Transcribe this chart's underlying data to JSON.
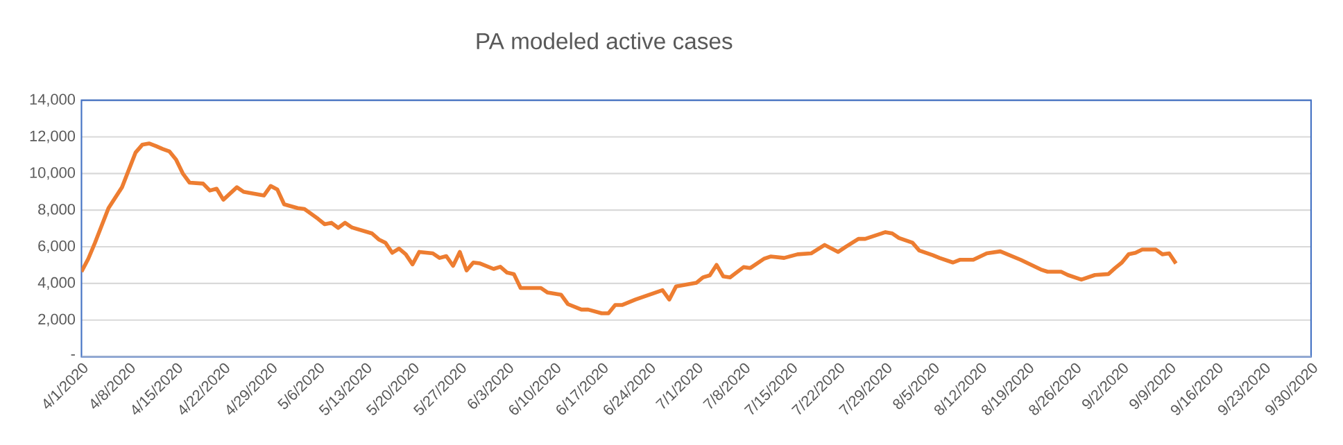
{
  "chart_data": {
    "type": "line",
    "title": "PA modeled active cases",
    "x": [
      "2020-04-01",
      "2020-04-02",
      "2020-04-03",
      "2020-04-05",
      "2020-04-07",
      "2020-04-09",
      "2020-04-10",
      "2020-04-11",
      "2020-04-12",
      "2020-04-13",
      "2020-04-14",
      "2020-04-15",
      "2020-04-16",
      "2020-04-17",
      "2020-04-19",
      "2020-04-20",
      "2020-04-21",
      "2020-04-22",
      "2020-04-24",
      "2020-04-25",
      "2020-04-28",
      "2020-04-29",
      "2020-04-30",
      "2020-05-01",
      "2020-05-03",
      "2020-05-04",
      "2020-05-06",
      "2020-05-07",
      "2020-05-08",
      "2020-05-09",
      "2020-05-10",
      "2020-05-11",
      "2020-05-14",
      "2020-05-15",
      "2020-05-16",
      "2020-05-17",
      "2020-05-18",
      "2020-05-19",
      "2020-05-20",
      "2020-05-21",
      "2020-05-23",
      "2020-05-24",
      "2020-05-25",
      "2020-05-26",
      "2020-05-27",
      "2020-05-28",
      "2020-05-29",
      "2020-05-30",
      "2020-06-01",
      "2020-06-02",
      "2020-06-03",
      "2020-06-04",
      "2020-06-05",
      "2020-06-08",
      "2020-06-09",
      "2020-06-11",
      "2020-06-12",
      "2020-06-14",
      "2020-06-15",
      "2020-06-17",
      "2020-06-18",
      "2020-06-19",
      "2020-06-20",
      "2020-06-22",
      "2020-06-24",
      "2020-06-26",
      "2020-06-27",
      "2020-06-28",
      "2020-07-01",
      "2020-07-02",
      "2020-07-03",
      "2020-07-04",
      "2020-07-05",
      "2020-07-06",
      "2020-07-08",
      "2020-07-09",
      "2020-07-11",
      "2020-07-12",
      "2020-07-14",
      "2020-07-16",
      "2020-07-18",
      "2020-07-20",
      "2020-07-22",
      "2020-07-23",
      "2020-07-25",
      "2020-07-26",
      "2020-07-29",
      "2020-07-30",
      "2020-07-31",
      "2020-08-02",
      "2020-08-03",
      "2020-08-05",
      "2020-08-06",
      "2020-08-08",
      "2020-08-09",
      "2020-08-11",
      "2020-08-13",
      "2020-08-15",
      "2020-08-18",
      "2020-08-21",
      "2020-08-22",
      "2020-08-24",
      "2020-08-25",
      "2020-08-27",
      "2020-08-29",
      "2020-08-31",
      "2020-09-01",
      "2020-09-02",
      "2020-09-03",
      "2020-09-04",
      "2020-09-05",
      "2020-09-07",
      "2020-09-08",
      "2020-09-09",
      "2020-09-10"
    ],
    "series": [
      {
        "color": "#ed7d31",
        "values": [
          4640,
          5340,
          6220,
          8110,
          9250,
          11140,
          11570,
          11640,
          11500,
          11340,
          11210,
          10760,
          10000,
          9500,
          9450,
          9070,
          9170,
          8570,
          9250,
          9000,
          8800,
          9320,
          9120,
          8320,
          8110,
          8060,
          7530,
          7230,
          7310,
          7030,
          7310,
          7060,
          6730,
          6400,
          6220,
          5670,
          5900,
          5590,
          5040,
          5720,
          5640,
          5390,
          5490,
          4960,
          5720,
          4710,
          5140,
          5090,
          4790,
          4910,
          4590,
          4510,
          3750,
          3750,
          3500,
          3380,
          2870,
          2570,
          2570,
          2370,
          2370,
          2820,
          2820,
          3120,
          3380,
          3630,
          3120,
          3830,
          4030,
          4330,
          4440,
          5010,
          4380,
          4330,
          4890,
          4840,
          5340,
          5470,
          5390,
          5590,
          5640,
          6100,
          5720,
          5970,
          6430,
          6430,
          6800,
          6730,
          6480,
          6220,
          5800,
          5540,
          5390,
          5140,
          5290,
          5290,
          5640,
          5750,
          5290,
          4760,
          4640,
          4640,
          4460,
          4210,
          4460,
          4510,
          4840,
          5140,
          5590,
          5670,
          5850,
          5850,
          5590,
          5640,
          5090
        ]
      }
    ],
    "xlim": [
      "2020-04-01",
      "2020-09-30"
    ],
    "xticks": [
      {
        "value": "2020-04-01",
        "label": "4/1/2020"
      },
      {
        "value": "2020-04-08",
        "label": "4/8/2020"
      },
      {
        "value": "2020-04-15",
        "label": "4/15/2020"
      },
      {
        "value": "2020-04-22",
        "label": "4/22/2020"
      },
      {
        "value": "2020-04-29",
        "label": "4/29/2020"
      },
      {
        "value": "2020-05-06",
        "label": "5/6/2020"
      },
      {
        "value": "2020-05-13",
        "label": "5/13/2020"
      },
      {
        "value": "2020-05-20",
        "label": "5/20/2020"
      },
      {
        "value": "2020-05-27",
        "label": "5/27/2020"
      },
      {
        "value": "2020-06-03",
        "label": "6/3/2020"
      },
      {
        "value": "2020-06-10",
        "label": "6/10/2020"
      },
      {
        "value": "2020-06-17",
        "label": "6/17/2020"
      },
      {
        "value": "2020-06-24",
        "label": "6/24/2020"
      },
      {
        "value": "2020-07-01",
        "label": "7/1/2020"
      },
      {
        "value": "2020-07-08",
        "label": "7/8/2020"
      },
      {
        "value": "2020-07-15",
        "label": "7/15/2020"
      },
      {
        "value": "2020-07-22",
        "label": "7/22/2020"
      },
      {
        "value": "2020-07-29",
        "label": "7/29/2020"
      },
      {
        "value": "2020-08-05",
        "label": "8/5/2020"
      },
      {
        "value": "2020-08-12",
        "label": "8/12/2020"
      },
      {
        "value": "2020-08-19",
        "label": "8/19/2020"
      },
      {
        "value": "2020-08-26",
        "label": "8/26/2020"
      },
      {
        "value": "2020-09-02",
        "label": "9/2/2020"
      },
      {
        "value": "2020-09-09",
        "label": "9/9/2020"
      },
      {
        "value": "2020-09-16",
        "label": "9/16/2020"
      },
      {
        "value": "2020-09-23",
        "label": "9/23/2020"
      },
      {
        "value": "2020-09-30",
        "label": "9/30/2020"
      }
    ],
    "ylim": [
      0,
      14000
    ],
    "yticks": [
      {
        "value": 0,
        "label": "-"
      },
      {
        "value": 2000,
        "label": "2,000"
      },
      {
        "value": 4000,
        "label": "4,000"
      },
      {
        "value": 6000,
        "label": "6,000"
      },
      {
        "value": 8000,
        "label": "8,000"
      },
      {
        "value": 10000,
        "label": "10,000"
      },
      {
        "value": 12000,
        "label": "12,000"
      },
      {
        "value": 14000,
        "label": "14,000"
      }
    ],
    "grid": "y",
    "marker": "none",
    "line_style": "solid"
  }
}
